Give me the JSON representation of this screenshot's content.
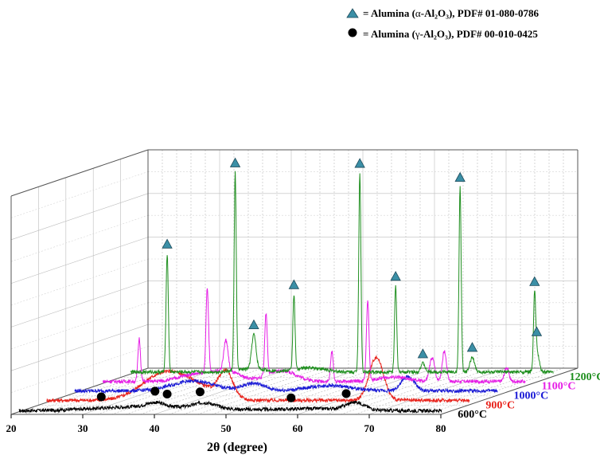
{
  "chart_data": {
    "type": "line",
    "style": "3d-waterfall",
    "xlabel": "2θ (degree)",
    "xlim": [
      20,
      80
    ],
    "x_ticks": [
      "20",
      "30",
      "40",
      "50",
      "60",
      "70",
      "80"
    ],
    "grid": true,
    "legend": {
      "placement": "top-right",
      "entries": [
        {
          "marker": "triangle",
          "color": "#3b8fa6",
          "prefix": "= Alumina (",
          "greek": "α",
          "formula": "-Al₂O₃), PDF# 01-080-0786"
        },
        {
          "marker": "circle",
          "color": "#000000",
          "prefix": "= Alumina (",
          "greek": "γ",
          "formula": "-Al₂O₃), PDF# 00-010-0425"
        }
      ]
    },
    "series": [
      {
        "name": "600°C",
        "color": "#000000",
        "baseline": 2,
        "peaks": [
          [
            39.5,
            4,
            1.2
          ],
          [
            46.5,
            5,
            1.5
          ],
          [
            67.5,
            7,
            1.3
          ]
        ],
        "broad": [
          [
            36,
            3,
            6
          ],
          [
            45,
            2,
            6
          ],
          [
            62,
            2,
            5
          ]
        ]
      },
      {
        "name": "900°C",
        "color": "#e8221b",
        "baseline": 3,
        "peaks": [
          [
            45.5,
            24,
            1.0
          ],
          [
            66.5,
            40,
            1.0
          ]
        ],
        "broad": [
          [
            36.5,
            22,
            3.0
          ],
          [
            41,
            12,
            3.0
          ]
        ]
      },
      {
        "name": "1000°C",
        "color": "#1b1bd6",
        "baseline": 3,
        "peaks": [
          [
            67.0,
            13,
            0.9
          ]
        ],
        "broad": [
          [
            37,
            9,
            3.0
          ],
          [
            45.5,
            7,
            1.5
          ],
          [
            56,
            5,
            3.0
          ]
        ]
      },
      {
        "name": "1100°C",
        "color": "#e61ee6",
        "baseline": 3,
        "peaks": [
          [
            25.6,
            40,
            0.18
          ],
          [
            35.1,
            78,
            0.18
          ],
          [
            37.7,
            28,
            0.3
          ],
          [
            43.3,
            58,
            0.18
          ],
          [
            52.5,
            28,
            0.18
          ],
          [
            57.5,
            75,
            0.18
          ],
          [
            66.5,
            22,
            0.35
          ],
          [
            68.2,
            28,
            0.3
          ],
          [
            76.9,
            13,
            0.3
          ]
        ],
        "broad": [
          [
            33,
            6,
            2.0
          ],
          [
            37.5,
            10,
            2.0
          ],
          [
            45.5,
            10,
            2.0
          ],
          [
            61,
            4,
            2.0
          ]
        ]
      },
      {
        "name": "1200°C",
        "color": "#1f8f1f",
        "baseline": 3,
        "peaks": [
          [
            25.6,
            110,
            0.16
          ],
          [
            35.1,
            184,
            0.15
          ],
          [
            37.7,
            32,
            0.3
          ],
          [
            43.3,
            70,
            0.15
          ],
          [
            52.5,
            185,
            0.15
          ],
          [
            57.5,
            80,
            0.15
          ],
          [
            61.3,
            8,
            0.3
          ],
          [
            66.5,
            172,
            0.15
          ],
          [
            68.2,
            14,
            0.3
          ],
          [
            76.9,
            63,
            0.15
          ],
          [
            77.2,
            20,
            0.3
          ]
        ],
        "broad": [
          [
            37.5,
            3,
            2.0
          ],
          [
            45.5,
            4,
            2.0
          ]
        ]
      }
    ],
    "markers": {
      "alpha": [
        {
          "series": "1200°C",
          "x": 25.6
        },
        {
          "series": "1200°C",
          "x": 35.1
        },
        {
          "series": "1200°C",
          "x": 37.7
        },
        {
          "series": "1200°C",
          "x": 43.3
        },
        {
          "series": "1200°C",
          "x": 52.5
        },
        {
          "series": "1200°C",
          "x": 57.5
        },
        {
          "series": "1200°C",
          "x": 61.3
        },
        {
          "series": "1200°C",
          "x": 66.5
        },
        {
          "series": "1200°C",
          "x": 68.2
        },
        {
          "series": "1200°C",
          "x": 76.9
        },
        {
          "series": "1200°C",
          "x": 77.2
        }
      ],
      "gamma": [
        {
          "series": "600°C",
          "x": 32.0
        },
        {
          "series": "600°C",
          "x": 39.5
        },
        {
          "series": "600°C",
          "x": 41.2
        },
        {
          "series": "600°C",
          "x": 45.8
        },
        {
          "series": "600°C",
          "x": 58.5
        },
        {
          "series": "600°C",
          "x": 66.2
        }
      ]
    }
  }
}
